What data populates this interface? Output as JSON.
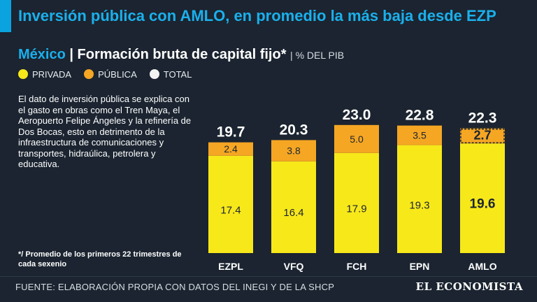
{
  "header": {
    "title": "Inversión pública con AMLO, en promedio la más baja desde EZP"
  },
  "subtitle": {
    "country": "México",
    "separator": "|",
    "main": "Formación bruta de capital fijo*",
    "unit": "| % DEL PIB"
  },
  "legend": [
    {
      "label": "PRIVADA",
      "color": "#f7e81a"
    },
    {
      "label": "PÚBLICA",
      "color": "#f5a623"
    },
    {
      "label": "TOTAL",
      "color": "#f2f2f2"
    }
  ],
  "note": "El dato de inversión pública se explica con el gasto en obras como el Tren Maya, el Aeropuerto Felipe Ángeles y la refinería de Dos Bocas, esto en detrimento de la infraestructura de comunicaciones y transportes, hidraúlica, petrolera y educativa.",
  "footnote": "*/ Promedio de los primeros 22 trimestres de cada sexenio",
  "footer": {
    "source": "FUENTE: ELABORACIÓN PROPIA CON DATOS DEL INEGI Y DE LA SHCP",
    "brand": "EL ECONOMISTA"
  },
  "colors": {
    "privada": "#f7e81a",
    "publica": "#f5a623",
    "background": "#1b2430",
    "accent": "#1ab0ec"
  },
  "chart_data": {
    "type": "bar",
    "stacked": true,
    "title": "Formación bruta de capital fijo* | % DEL PIB",
    "categories": [
      "EZPL",
      "VFQ",
      "FCH",
      "EPN",
      "AMLO"
    ],
    "series": [
      {
        "name": "PRIVADA",
        "values": [
          17.4,
          16.4,
          17.9,
          19.3,
          19.6
        ]
      },
      {
        "name": "PÚBLICA",
        "values": [
          2.4,
          3.8,
          5.0,
          3.5,
          2.7
        ]
      }
    ],
    "totals": [
      19.7,
      20.3,
      23.0,
      22.8,
      22.3
    ],
    "value_labels": {
      "privada": [
        "17.4",
        "16.4",
        "17.9",
        "19.3",
        "19.6"
      ],
      "publica": [
        "2.4",
        "3.8",
        "5.0",
        "3.5",
        "2.7"
      ],
      "total": [
        "19.7",
        "20.3",
        "23.0",
        "22.8",
        "22.3"
      ]
    },
    "highlight_category": "AMLO",
    "ylim": [
      0,
      25
    ],
    "xlabel": "",
    "ylabel": ""
  }
}
